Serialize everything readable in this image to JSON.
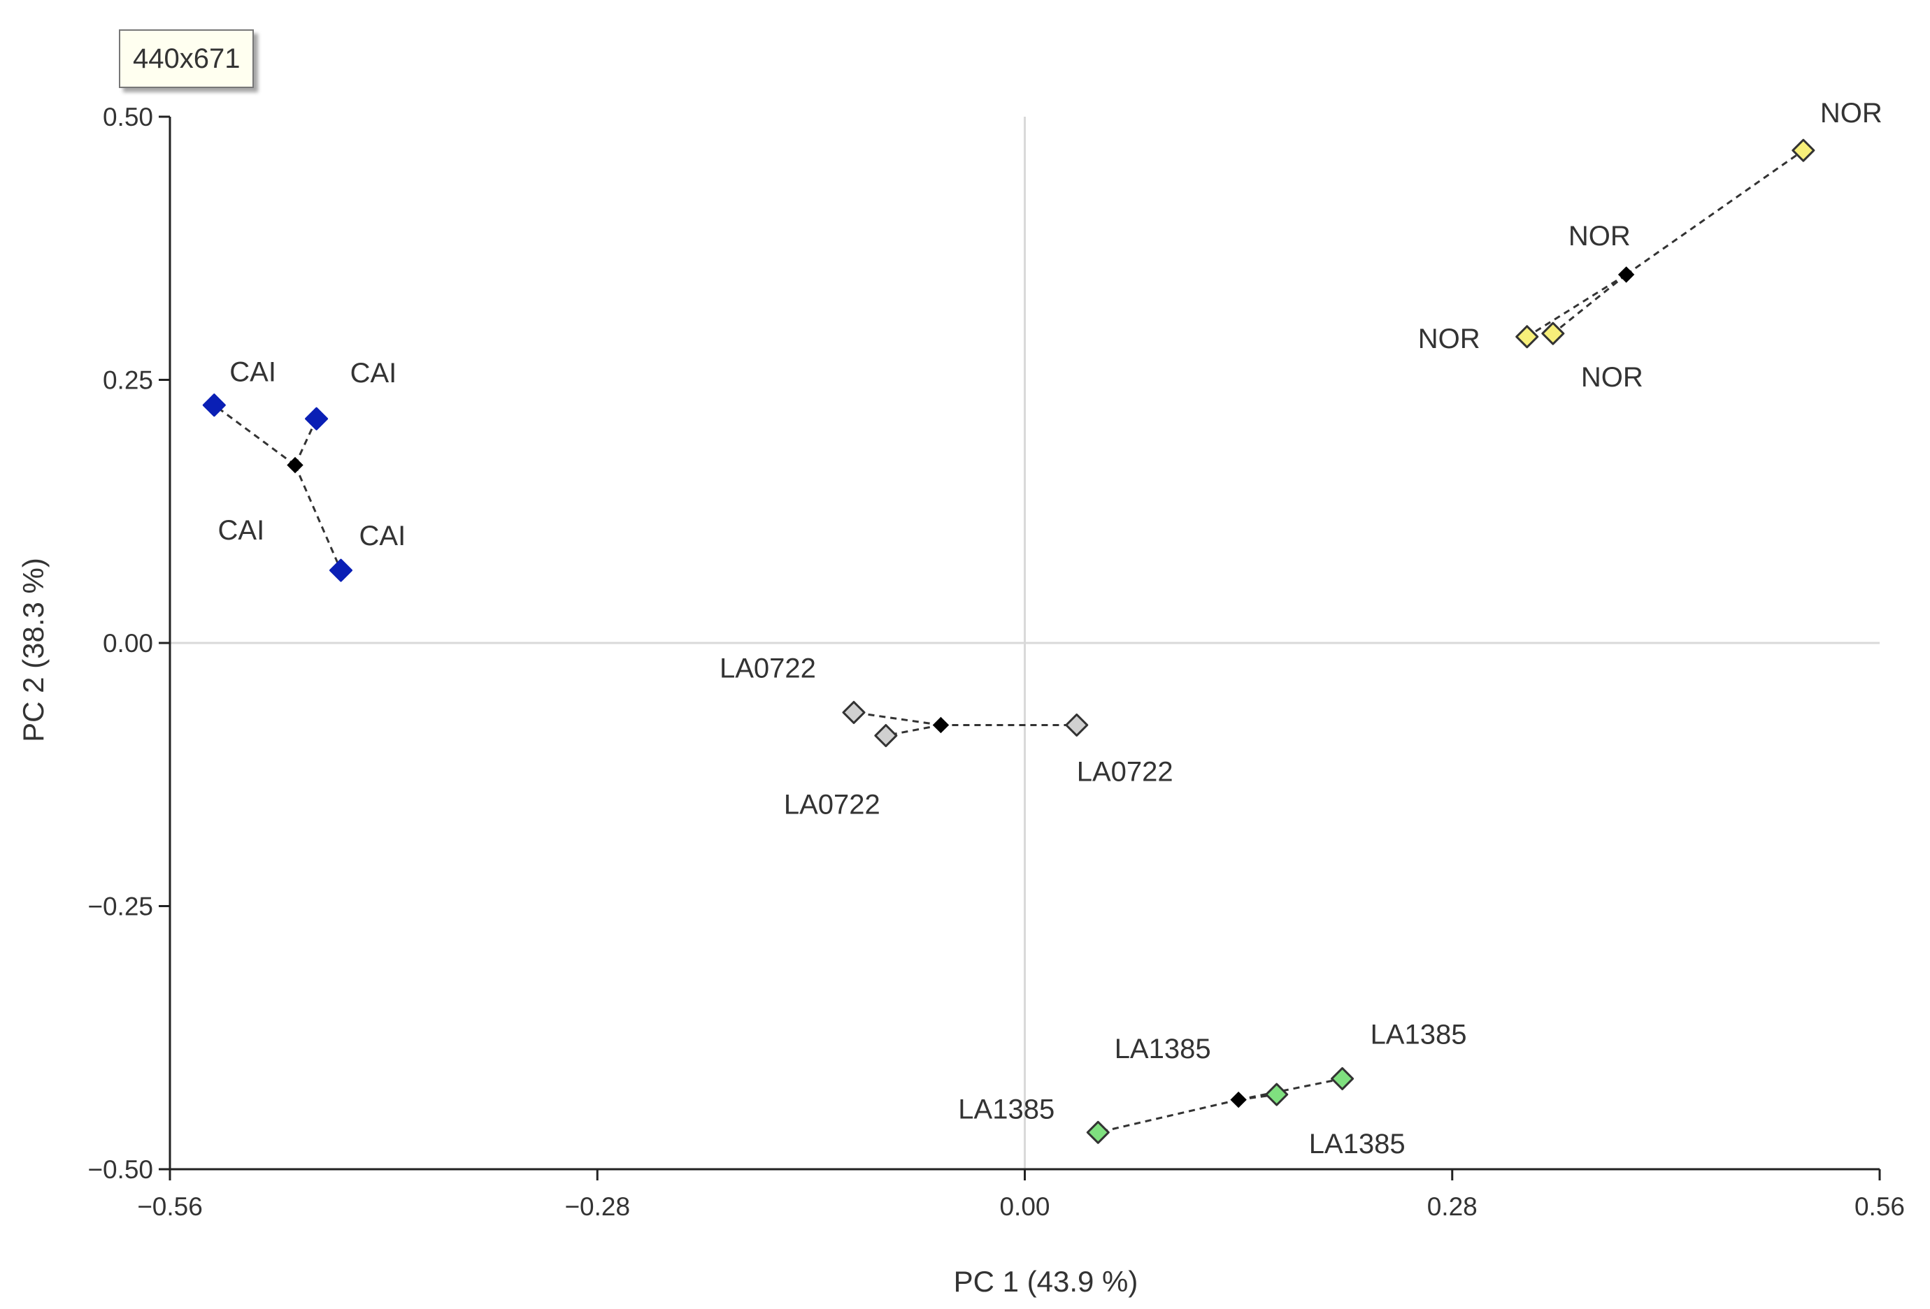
{
  "tooltip": "440x671",
  "chart_data": {
    "type": "scatter",
    "xlabel": "PC 1 (43.9 %)",
    "ylabel": "PC 2 (38.3 %)",
    "xlim": [
      -0.56,
      0.56
    ],
    "ylim": [
      -0.5,
      0.5
    ],
    "xticks": [
      -0.56,
      -0.28,
      0.0,
      0.28,
      0.56
    ],
    "xtick_labels": [
      "−0.56",
      "−0.28",
      "0.00",
      "0.28",
      "0.56"
    ],
    "yticks": [
      0.5,
      0.25,
      0.0,
      -0.25,
      -0.5
    ],
    "ytick_labels": [
      "0.50",
      "0.25",
      "0.00",
      "−0.25",
      "−0.50"
    ],
    "zero_lines": true,
    "groups": [
      {
        "name": "CAI",
        "color": "#0a1fb5",
        "stroke": "#0a1fb5",
        "centroid": [
          -0.478,
          0.169
        ],
        "points": [
          {
            "x": -0.531,
            "y": 0.226,
            "label": "CAI",
            "label_dx": 22,
            "label_dy": -34
          },
          {
            "x": -0.464,
            "y": 0.213,
            "label": "CAI",
            "label_dx": 48,
            "label_dy": -52
          },
          {
            "x": -0.448,
            "y": 0.069,
            "label": "CAI",
            "label_dx": 26,
            "label_dy": -36
          },
          {
            "x": -0.448,
            "y": 0.069,
            "label": "CAI",
            "label_dx": -176,
            "label_dy": -44
          }
        ]
      },
      {
        "name": "NOR",
        "color": "#f7ef7a",
        "stroke": "#333333",
        "centroid": [
          0.394,
          0.35
        ],
        "points": [
          {
            "x": 0.51,
            "y": 0.468,
            "label": "NOR",
            "label_dx": 24,
            "label_dy": -40
          },
          {
            "x": 0.329,
            "y": 0.291,
            "label": "NOR",
            "label_dx": -156,
            "label_dy": 16
          },
          {
            "x": 0.346,
            "y": 0.294,
            "label": "NOR",
            "label_dx": 40,
            "label_dy": 76
          },
          {
            "x": 0.346,
            "y": 0.294,
            "label": "NOR",
            "label_dx": 22,
            "label_dy": -126
          }
        ]
      },
      {
        "name": "LA0722",
        "color": "#d0d0d0",
        "stroke": "#333333",
        "centroid": [
          -0.055,
          -0.078
        ],
        "points": [
          {
            "x": -0.112,
            "y": -0.066,
            "label": "LA0722",
            "label_dx": -192,
            "label_dy": -50
          },
          {
            "x": -0.091,
            "y": -0.088,
            "label": "LA0722",
            "label_dx": -146,
            "label_dy": 112
          },
          {
            "x": 0.034,
            "y": -0.078,
            "label": "LA0722",
            "label_dx": 0,
            "label_dy": 80
          }
        ]
      },
      {
        "name": "LA1385",
        "color": "#7fe07f",
        "stroke": "#333333",
        "centroid": [
          0.14,
          -0.434
        ],
        "points": [
          {
            "x": 0.048,
            "y": -0.465,
            "label": "LA1385",
            "label_dx": -200,
            "label_dy": -20
          },
          {
            "x": 0.165,
            "y": -0.429,
            "label": "LA1385",
            "label_dx": 46,
            "label_dy": 84
          },
          {
            "x": 0.208,
            "y": -0.414,
            "label": "LA1385",
            "label_dx": 40,
            "label_dy": -50
          },
          {
            "x": 0.165,
            "y": -0.429,
            "label": "LA1385",
            "label_dx": -232,
            "label_dy": -52
          }
        ]
      }
    ]
  }
}
